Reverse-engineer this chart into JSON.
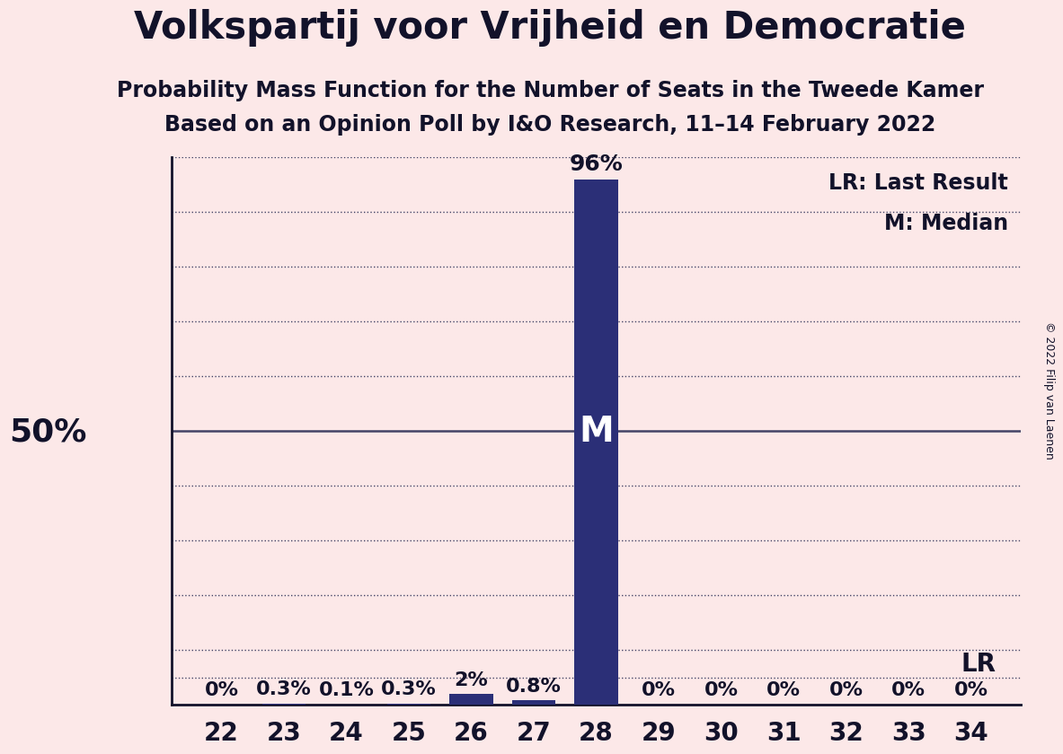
{
  "title": "Volkspartij voor Vrijheid en Democratie",
  "subtitle1": "Probability Mass Function for the Number of Seats in the Tweede Kamer",
  "subtitle2": "Based on an Opinion Poll by I&O Research, 11–14 February 2022",
  "copyright": "© 2022 Filip van Laenen",
  "seats": [
    22,
    23,
    24,
    25,
    26,
    27,
    28,
    29,
    30,
    31,
    32,
    33,
    34
  ],
  "probabilities": [
    0.0,
    0.3,
    0.1,
    0.3,
    2.0,
    0.8,
    96.0,
    0.0,
    0.0,
    0.0,
    0.0,
    0.0,
    0.0
  ],
  "bar_color": "#2b2f77",
  "background_color": "#fce8e8",
  "label_color": "#12122a",
  "median_seat": 28,
  "lr_seat": 34,
  "ylabel_text": "50%",
  "ylabel_value": 50,
  "legend_lr": "LR: Last Result",
  "legend_m": "M: Median",
  "ylim": [
    0,
    100
  ],
  "grid_color": "#444466",
  "title_fontsize": 30,
  "subtitle_fontsize": 17,
  "bar_label_fontsize": 16,
  "axis_label_fontsize": 24,
  "tick_fontsize": 20,
  "legend_fontsize": 17,
  "median_fontsize": 28,
  "lr_fontsize": 20
}
